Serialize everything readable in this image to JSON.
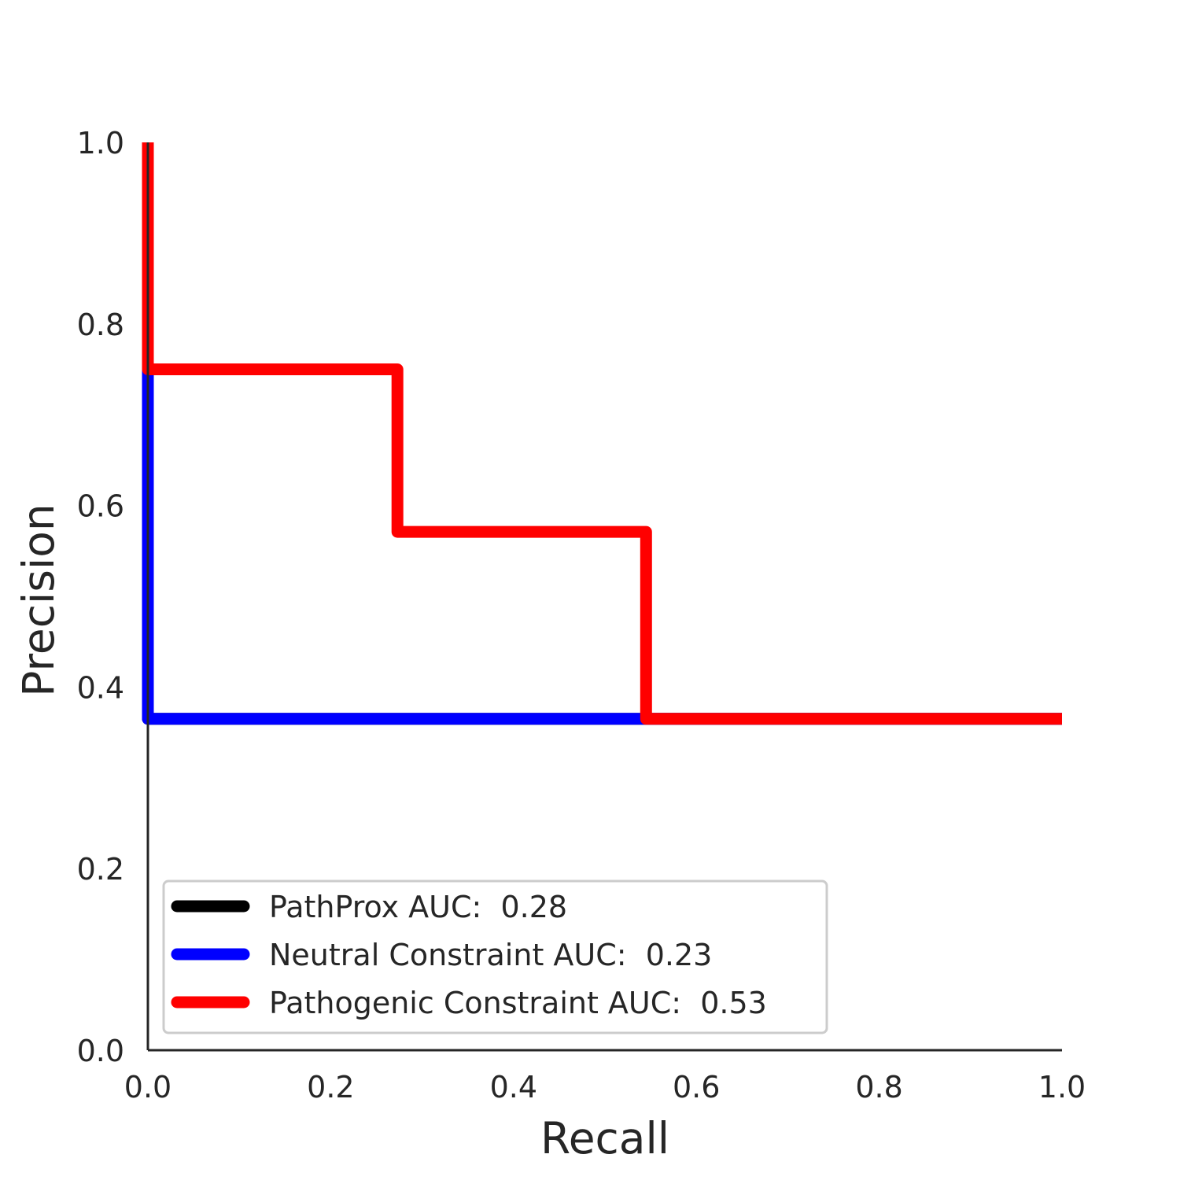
{
  "chart_data": {
    "type": "line",
    "title": "",
    "xlabel": "Recall",
    "ylabel": "Precision",
    "xlim": [
      0.0,
      1.0
    ],
    "ylim": [
      0.0,
      1.0
    ],
    "xticks": [
      "0.0",
      "0.2",
      "0.4",
      "0.6",
      "0.8",
      "1.0"
    ],
    "yticks": [
      "0.0",
      "0.2",
      "0.4",
      "0.6",
      "0.8",
      "1.0"
    ],
    "grid": false,
    "legend_position": "lower-left",
    "series": [
      {
        "name": "PathProx AUC:  0.28",
        "color": "#000000",
        "x": [
          0.0,
          0.0,
          1.0
        ],
        "y": [
          1.0,
          0.365,
          0.365
        ]
      },
      {
        "name": "Neutral Constraint AUC:  0.23",
        "color": "#0000ff",
        "x": [
          0.0,
          0.0,
          0.545,
          1.0
        ],
        "y": [
          0.75,
          0.365,
          0.365,
          0.365
        ]
      },
      {
        "name": "Pathogenic Constraint AUC:  0.53",
        "color": "#ff0000",
        "x": [
          0.0,
          0.0,
          0.273,
          0.273,
          0.545,
          0.545,
          1.0
        ],
        "y": [
          1.0,
          0.75,
          0.75,
          0.571,
          0.571,
          0.365,
          0.365
        ]
      }
    ]
  }
}
